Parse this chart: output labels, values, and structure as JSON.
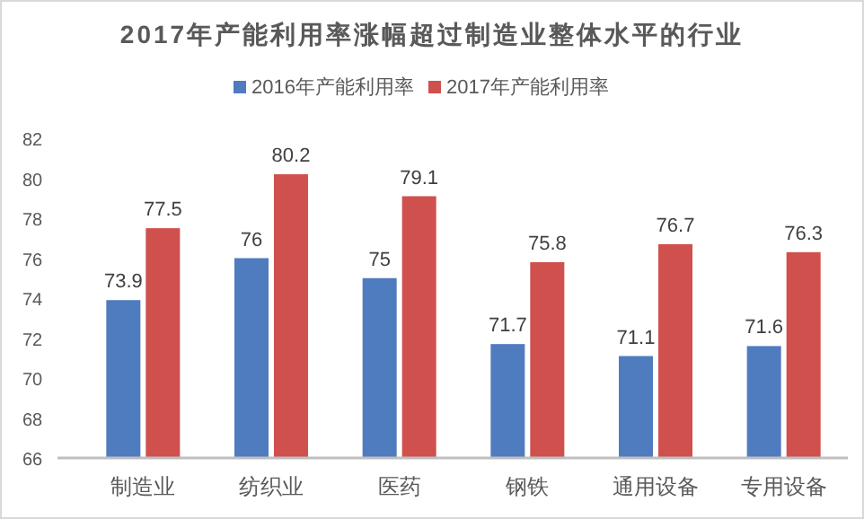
{
  "chart_data": {
    "type": "bar",
    "title": "2017年产能利用率涨幅超过制造业整体水平的行业",
    "categories": [
      "制造业",
      "纺织业",
      "医药",
      "钢铁",
      "通用设备",
      "专用设备"
    ],
    "series": [
      {
        "name": "2016年产能利用率",
        "color": "#4f7bbf",
        "values": [
          73.9,
          76,
          75,
          71.7,
          71.1,
          71.6
        ]
      },
      {
        "name": "2017年产能利用率",
        "color": "#d0504d",
        "values": [
          77.5,
          80.2,
          79.1,
          75.8,
          76.7,
          76.3
        ]
      }
    ],
    "ylim": [
      66,
      82
    ],
    "yticks": [
      66,
      68,
      70,
      72,
      74,
      76,
      78,
      80,
      82
    ],
    "data_labels": true,
    "legend": "top",
    "grid": false
  }
}
